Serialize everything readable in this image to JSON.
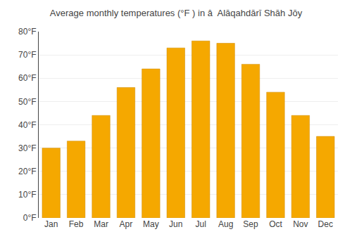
{
  "chart_data": {
    "type": "bar",
    "title": "Average monthly temperatures (°F ) in â  Alāqahdārī Shāh Jōy",
    "categories": [
      "Jan",
      "Feb",
      "Mar",
      "Apr",
      "May",
      "Jun",
      "Jul",
      "Aug",
      "Sep",
      "Oct",
      "Nov",
      "Dec"
    ],
    "values": [
      30,
      33,
      44,
      56,
      64,
      73,
      76,
      75,
      66,
      54,
      44,
      35
    ],
    "color": "#F5A800",
    "ylim": [
      0,
      80
    ],
    "yticks": [
      {
        "value": 0,
        "label": "0°F"
      },
      {
        "value": 10,
        "label": "10°F"
      },
      {
        "value": 20,
        "label": "20°F"
      },
      {
        "value": 30,
        "label": "30°F"
      },
      {
        "value": 40,
        "label": "40°F"
      },
      {
        "value": 50,
        "label": "50°F"
      },
      {
        "value": 60,
        "label": "60°F"
      },
      {
        "value": 70,
        "label": "70°F"
      },
      {
        "value": 80,
        "label": "80°F"
      }
    ],
    "grid": true
  }
}
